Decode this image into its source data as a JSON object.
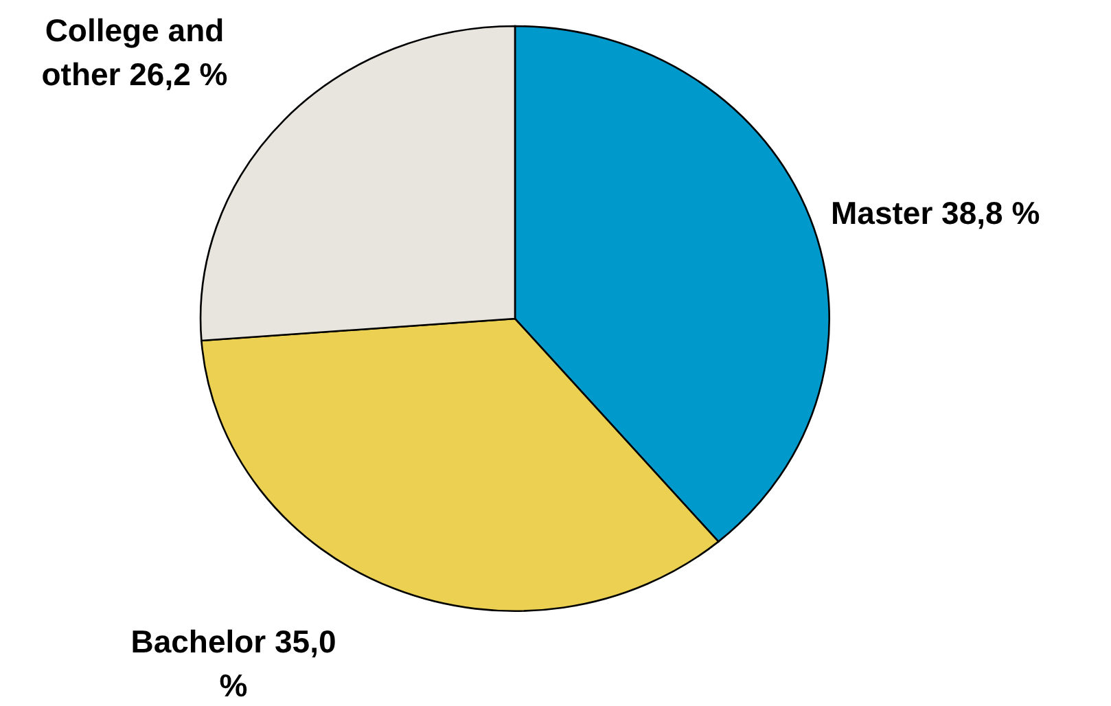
{
  "chart_data": {
    "type": "pie",
    "categories": [
      "Master",
      "Bachelor",
      "College and other"
    ],
    "values": [
      38.8,
      35.0,
      26.2
    ],
    "colors": [
      "#0099cc",
      "#ecd052",
      "#e8e5df"
    ],
    "value_labels": [
      "38,8 %",
      "35,0 %",
      "26,2 %"
    ]
  }
}
